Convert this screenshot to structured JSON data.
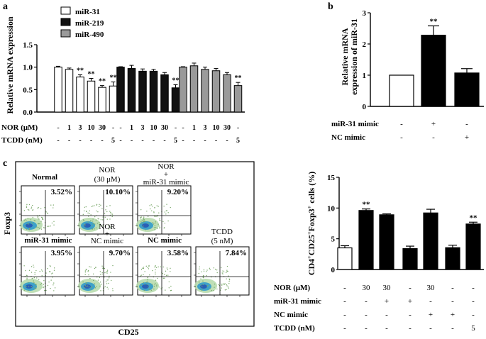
{
  "chart_data": [
    {
      "id": "a",
      "type": "bar",
      "panel_label": "a",
      "ylabel": "Relative mRNA expression",
      "ylim": [
        0,
        1.5
      ],
      "yticks": [
        "0.0",
        "0.5",
        "1.0",
        "1.5"
      ],
      "legend": [
        {
          "name": "miR-31",
          "fill": "#ffffff"
        },
        {
          "name": "miR-219",
          "fill": "#111111"
        },
        {
          "name": "miR-490",
          "fill": "#9a9a9a"
        }
      ],
      "groups": [
        {
          "name": "miR-31",
          "fill": "#ffffff",
          "values": [
            1.0,
            0.95,
            0.78,
            0.69,
            0.55,
            0.58
          ],
          "errors": [
            0.02,
            0.03,
            0.05,
            0.06,
            0.04,
            0.09
          ],
          "sig": [
            "",
            "",
            "**",
            "**",
            "**",
            "**"
          ]
        },
        {
          "name": "miR-219",
          "fill": "#111111",
          "values": [
            1.0,
            0.97,
            0.91,
            0.91,
            0.83,
            0.54
          ],
          "errors": [
            0.01,
            0.07,
            0.05,
            0.04,
            0.05,
            0.07
          ],
          "sig": [
            "",
            "",
            "",
            "",
            "",
            "**"
          ]
        },
        {
          "name": "miR-490",
          "fill": "#9a9a9a",
          "values": [
            1.0,
            1.03,
            0.95,
            0.92,
            0.83,
            0.59
          ],
          "errors": [
            0.01,
            0.06,
            0.05,
            0.05,
            0.05,
            0.07
          ],
          "sig": [
            "",
            "",
            "",
            "",
            "",
            "**"
          ]
        }
      ],
      "treatment_rows": [
        {
          "label": "NOR (μM)",
          "group_values": [
            "-",
            "1",
            "3",
            "10",
            "30",
            "-"
          ]
        },
        {
          "label": "TCDD (nM)",
          "group_values": [
            "-",
            "-",
            "-",
            "-",
            "-",
            "5"
          ]
        }
      ]
    },
    {
      "id": "b",
      "type": "bar",
      "panel_label": "b",
      "ylabel_lines": [
        "Relative mRNA",
        "expression of miR-31"
      ],
      "ylim": [
        0,
        3
      ],
      "yticks": [
        "0",
        "1",
        "2",
        "3"
      ],
      "values": [
        1.0,
        2.28,
        1.07
      ],
      "errors": [
        0.0,
        0.3,
        0.14
      ],
      "fills": [
        "#ffffff",
        "#000000",
        "#000000"
      ],
      "sig": [
        "",
        "**",
        ""
      ],
      "treatment_rows": [
        {
          "label": "miR-31 mimic",
          "values": [
            "-",
            "+",
            "-"
          ]
        },
        {
          "label": "NC mimic",
          "values": [
            "-",
            "-",
            "+"
          ]
        }
      ]
    },
    {
      "id": "c-bar",
      "type": "bar",
      "ylabel": "CD4+CD25+Foxp3+ cells (%)",
      "ylim": [
        0,
        15
      ],
      "yticks": [
        "0",
        "5",
        "10",
        "15"
      ],
      "values": [
        3.52,
        9.6,
        8.9,
        3.4,
        9.2,
        3.55,
        7.4
      ],
      "errors": [
        0.35,
        0.25,
        0.15,
        0.4,
        0.6,
        0.4,
        0.3
      ],
      "fills": [
        "#ffffff",
        "#000000",
        "#000000",
        "#000000",
        "#000000",
        "#000000",
        "#000000"
      ],
      "sig": [
        "",
        "**",
        "",
        "",
        "",
        "",
        "**"
      ],
      "treatment_rows": [
        {
          "label": "NOR (μM)",
          "values": [
            "-",
            "30",
            "30",
            "-",
            "30",
            "-",
            "-"
          ]
        },
        {
          "label": "miR-31 mimic",
          "values": [
            "-",
            "-",
            "+",
            "+",
            "-",
            "-",
            "-"
          ]
        },
        {
          "label": "NC mimic",
          "values": [
            "-",
            "-",
            "-",
            "-",
            "+",
            "+",
            "-"
          ]
        },
        {
          "label": "TCDD (nM)",
          "values": [
            "-",
            "-",
            "-",
            "-",
            "-",
            "-",
            "5"
          ]
        }
      ]
    },
    {
      "id": "c-flow",
      "type": "scatter",
      "panel_label": "c",
      "xlabel": "CD25",
      "ylabel": "Foxp3",
      "plots": [
        {
          "title": "Normal",
          "pct": "3.52%"
        },
        {
          "title": "NOR (30 μM)",
          "title_lines": [
            "NOR",
            "(30  μM)"
          ],
          "pct": "10.10%"
        },
        {
          "title_lines": [
            "NOR",
            "+",
            "miR-31 mimic"
          ],
          "pct": "9.20%"
        },
        {
          "title": "",
          "pct": "3.95%"
        },
        {
          "title_lines": [
            "NOR",
            "+",
            "NC mimic"
          ],
          "pct": "9.70%"
        },
        {
          "title": "",
          "pct": "3.58%"
        },
        {
          "title_lines": [
            "TCDD",
            "(5 nM)"
          ],
          "pct": "7.84%"
        }
      ],
      "row2_titles": [
        "miR-31 mimic",
        "NC mimic"
      ]
    }
  ]
}
